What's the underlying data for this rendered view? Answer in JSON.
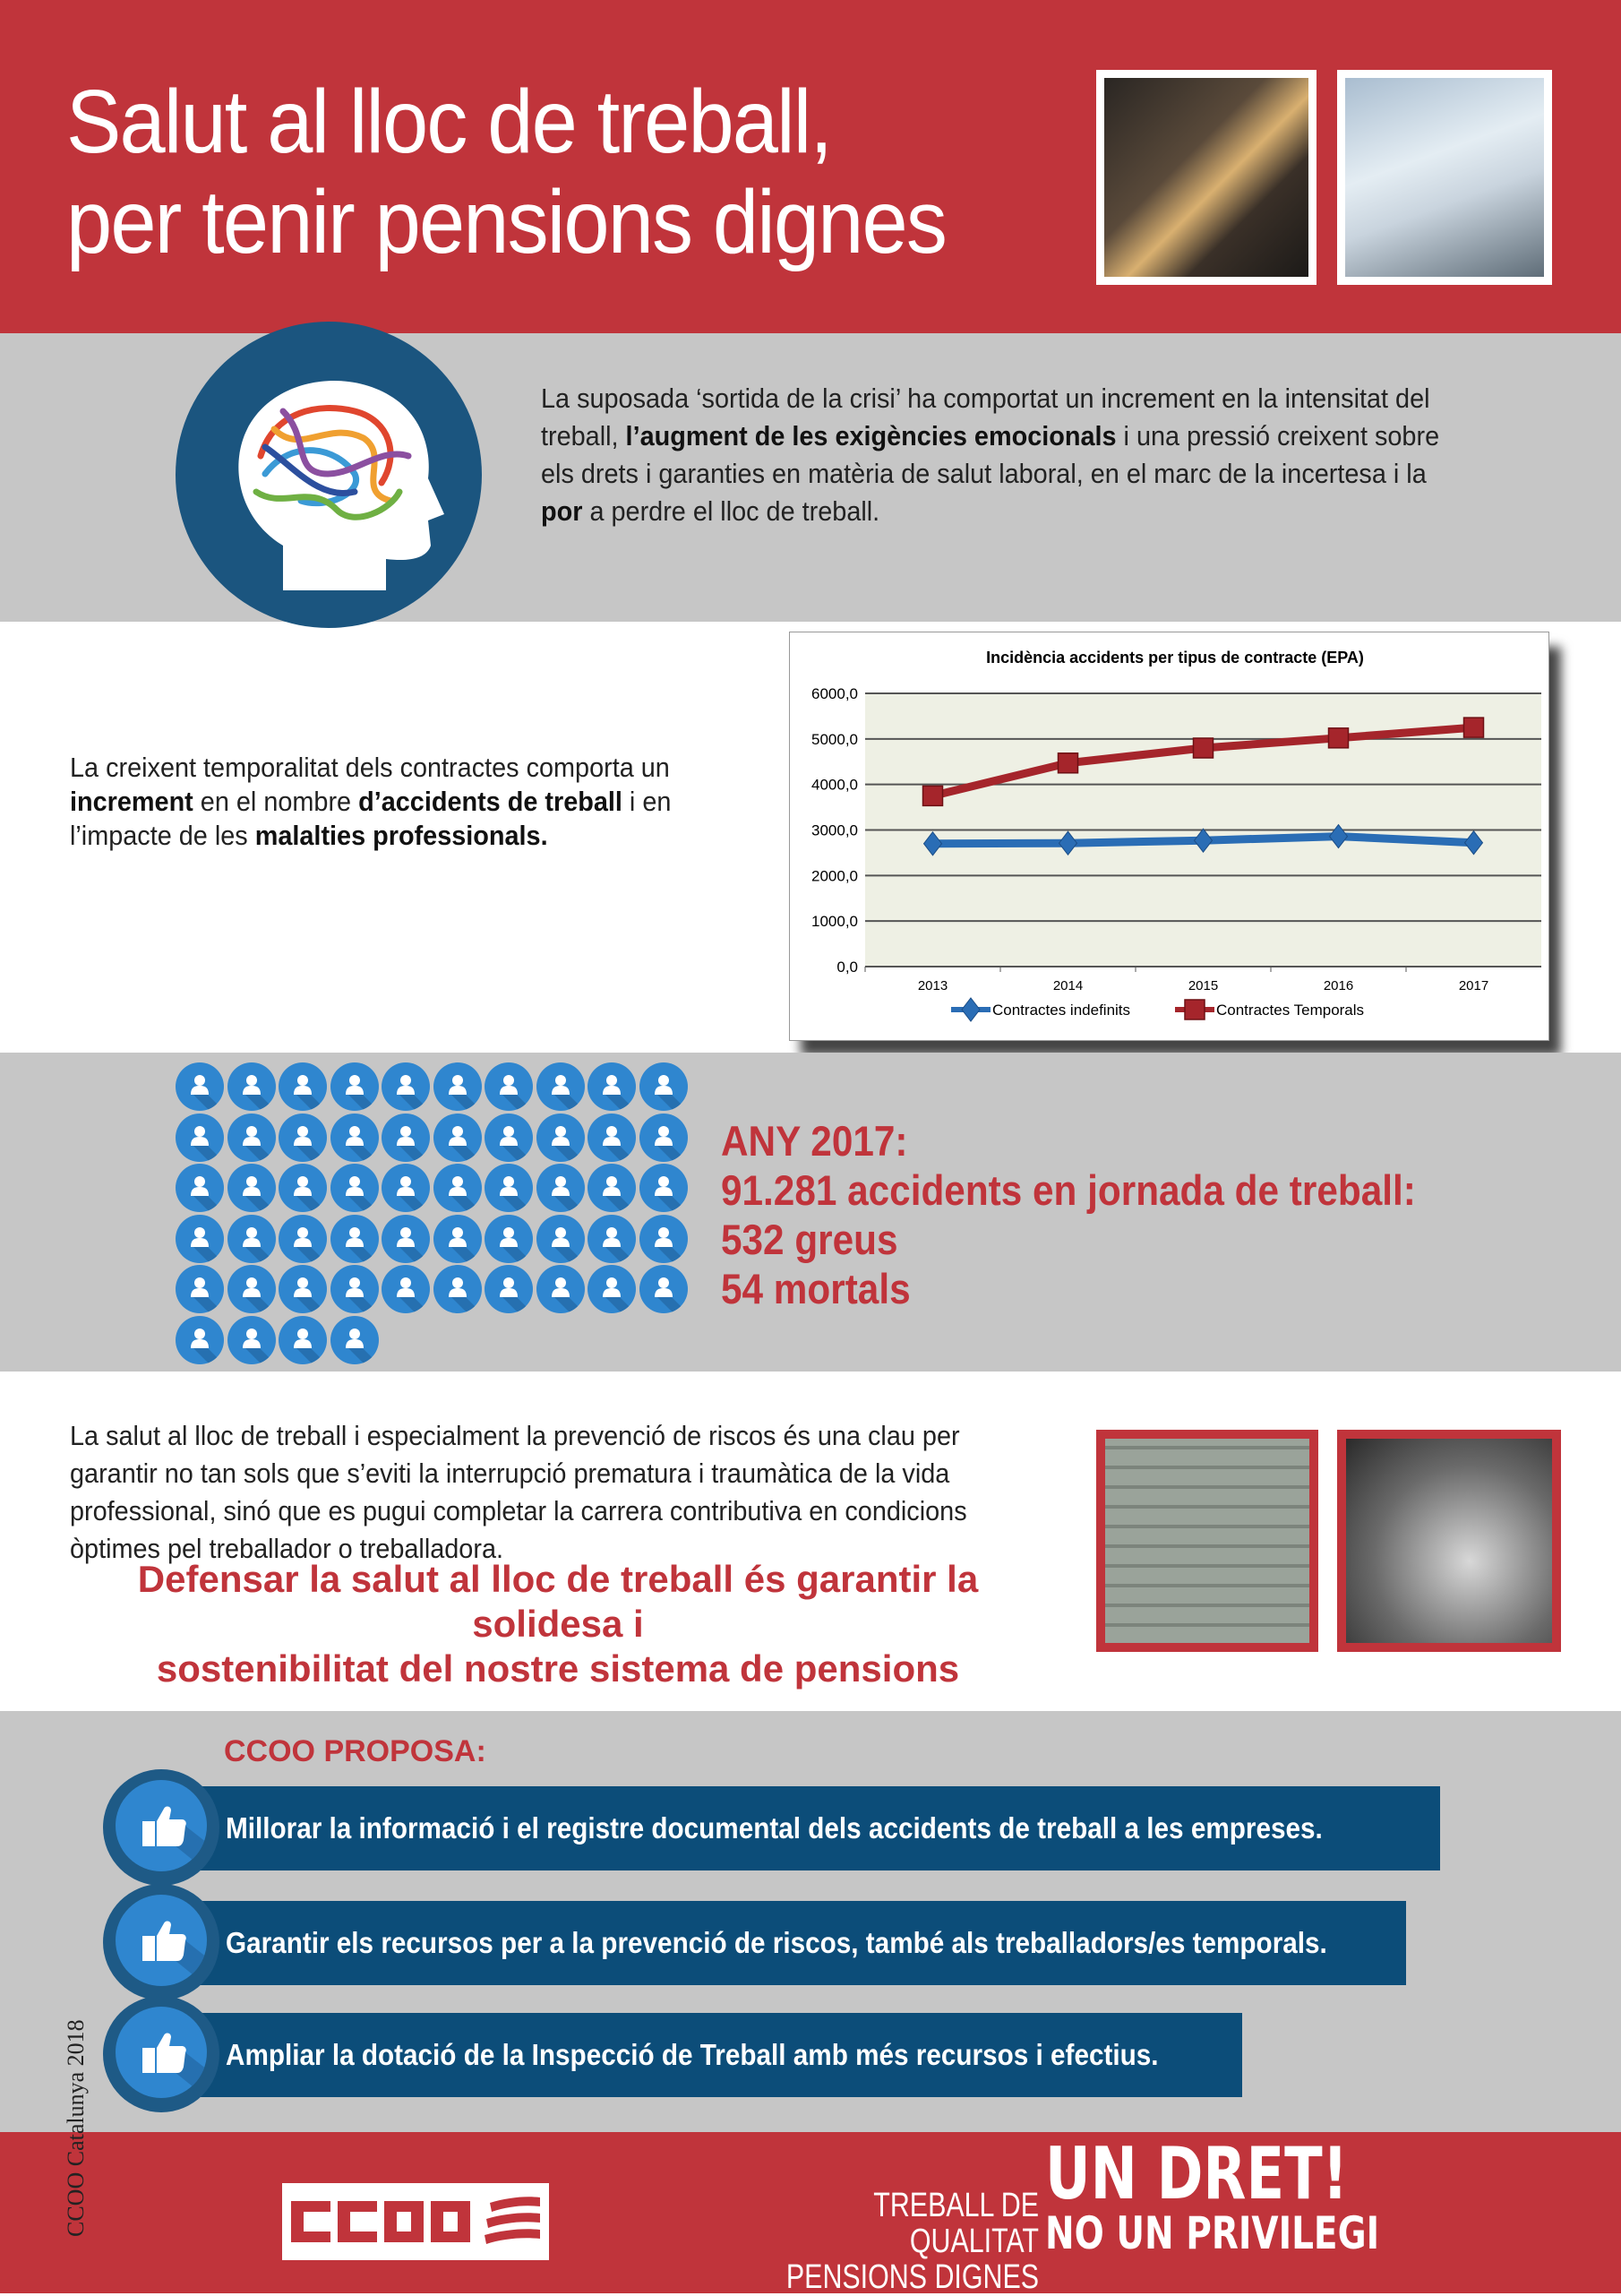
{
  "header": {
    "title_line1": "Salut al lloc de treball,",
    "title_line2": "per tenir pensions dignes",
    "photo1": "welder-photo",
    "photo2": "lab-technician-photo"
  },
  "intro": {
    "icon": "head-brain-icon",
    "segments": [
      {
        "t": "La suposada ‘sortida de la crisi’ ha comportat un increment en la intensitat del treball, ",
        "b": false
      },
      {
        "t": "l’augment de les exigències emocionals",
        "b": true
      },
      {
        "t": " i una pressió creixent sobre els drets i garanties en matèria de salut laboral, en el marc de la incertesa i la ",
        "b": false
      },
      {
        "t": "por",
        "b": true
      },
      {
        "t": " a perdre el lloc de treball.",
        "b": false
      }
    ]
  },
  "temporality": {
    "segments": [
      {
        "t": "La creixent temporalitat dels contractes comporta un ",
        "b": false
      },
      {
        "t": "increment",
        "b": true
      },
      {
        "t": " en el nombre ",
        "b": false
      },
      {
        "t": "d’accidents de treball",
        "b": true
      },
      {
        "t": " i en l’impacte de les ",
        "b": false
      },
      {
        "t": "malalties professionals.",
        "b": true
      }
    ]
  },
  "chart_data": {
    "type": "line",
    "title": "Incidència accidents per tipus de contracte (EPA)",
    "categories": [
      "2013",
      "2014",
      "2015",
      "2016",
      "2017"
    ],
    "ylim": [
      0,
      6000
    ],
    "yticks": [
      "0,0",
      "1000,0",
      "2000,0",
      "3000,0",
      "4000,0",
      "5000,0",
      "6000,0"
    ],
    "grid": true,
    "legend": "bottom",
    "series": [
      {
        "name": "Contractes indefinits",
        "values": [
          2700,
          2710,
          2770,
          2860,
          2720
        ],
        "color": "#2a6db5",
        "marker": "diamond"
      },
      {
        "name": "Contractes Temporals",
        "values": [
          3750,
          4470,
          4800,
          5020,
          5250
        ],
        "color": "#a5252b",
        "marker": "square"
      }
    ]
  },
  "stats": {
    "icon_count": 54,
    "icon": "person-icon",
    "line1": "ANY 2017:",
    "line2": "91.281 accidents en jornada de treball:",
    "line3": "532 greus",
    "line4": "54 mortals"
  },
  "prevention": {
    "text": "La salut al lloc de treball i especialment la prevenció de riscos és una clau per garantir no tan sols que s’eviti la interrupció prematura i traumàtica de la vida professional, sinó que es pugui completar la carrera contributiva en condicions òptimes pel treballador o treballadora.",
    "headline_line1": "Defensar la salut al lloc de treball és garantir la solidesa i",
    "headline_line2": "sostenibilitat del nostre sistema de pensions",
    "photo1": "facade-workers-photo",
    "photo2": "elderly-couple-photo"
  },
  "proposals": {
    "heading": "CCOO PROPOSA:",
    "icon": "thumbs-up-icon",
    "items": [
      "Millorar la informació i el registre documental dels accidents de treball a les empreses.",
      "Garantir els recursos per a la prevenció de riscos, també als treballadors/es temporals.",
      "Ampliar la dotació de la Inspecció de Treball amb més recursos i efectius."
    ]
  },
  "footer": {
    "credit": "CCOO Catalunya 2018",
    "logo": "CCOO",
    "tag_line1": "TREBALL DE QUALITAT",
    "tag_line2": "PENSIONS DIGNES",
    "slogan_line1": "UN DRET!",
    "slogan_line2": "NO UN PRIVILEGI"
  },
  "colors": {
    "red": "#c0343b",
    "gray": "#c6c6c6",
    "navy": "#0c4d79",
    "blue": "#2f86cf"
  }
}
